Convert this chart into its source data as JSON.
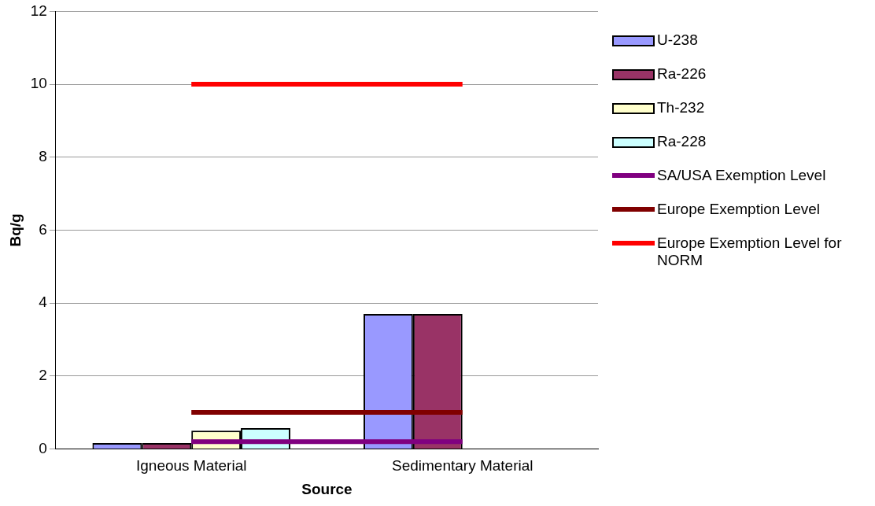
{
  "chart_data": {
    "type": "bar",
    "xlabel": "Source",
    "ylabel": "Bq/g",
    "categories": [
      "Igneous Material",
      "Sedimentary Material"
    ],
    "series": [
      {
        "name": "U-238",
        "color": "#9999ff",
        "values": [
          0.16,
          3.7
        ]
      },
      {
        "name": "Ra-226",
        "color": "#993366",
        "values": [
          0.16,
          3.7
        ]
      },
      {
        "name": "Th-232",
        "color": "#ffffcc",
        "values": [
          0.5,
          null
        ]
      },
      {
        "name": "Ra-228",
        "color": "#ccffff",
        "values": [
          0.57,
          null
        ]
      },
      {
        "name": "SA/USA Exemption Level",
        "type": "line",
        "color": "#800080",
        "values": [
          0.2,
          0.2
        ]
      },
      {
        "name": "Europe Exemption Level",
        "type": "line",
        "color": "#800000",
        "values": [
          1,
          1
        ]
      },
      {
        "name": "Europe Exemption Level for NORM",
        "type": "line",
        "color": "#ff0000",
        "values": [
          10,
          10
        ]
      }
    ],
    "ylim": [
      0,
      12
    ],
    "yticks": [
      0,
      2,
      4,
      6,
      8,
      10,
      12
    ],
    "grid": "y",
    "legend": "right",
    "marker": "none"
  }
}
